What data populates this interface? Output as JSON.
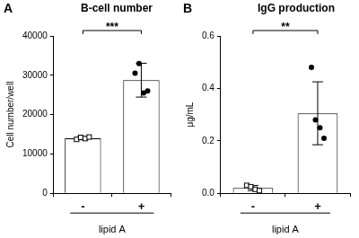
{
  "chart_data": [
    {
      "type": "bar",
      "panel": "A",
      "title": "B-cell number",
      "y_label": "Cell number/well",
      "x_label": "lipid A",
      "categories": [
        "-",
        "+"
      ],
      "values": [
        14000,
        28750
      ],
      "errors": [
        400,
        4300
      ],
      "points": [
        {
          "marker": "square-open",
          "values": [
            13700,
            14200,
            13900,
            14300
          ]
        },
        {
          "marker": "circle",
          "values": [
            30500,
            33000,
            25500,
            26000
          ]
        }
      ],
      "color": "#ffffff",
      "significance": "***",
      "ylim": [
        0,
        40000
      ],
      "yticks": [
        0,
        10000,
        20000,
        30000,
        40000
      ],
      "grid": false
    },
    {
      "type": "bar",
      "panel": "B",
      "title": "IgG production",
      "y_label": "μg/mL",
      "x_label": "lipid A",
      "categories": [
        "-",
        "+"
      ],
      "values": [
        0.02,
        0.305
      ],
      "errors": [
        0.01,
        0.12
      ],
      "points": [
        {
          "marker": "square-open",
          "values": [
            0.03,
            0.025,
            0.015,
            0.01
          ]
        },
        {
          "marker": "circle",
          "values": [
            0.48,
            0.28,
            0.25,
            0.21
          ]
        }
      ],
      "color": "#ffffff",
      "significance": "**",
      "ylim": [
        0,
        0.6
      ],
      "yticks": [
        {
          "value": 0,
          "label": "0.0"
        },
        {
          "value": 0.2,
          "label": "0.2"
        },
        {
          "value": 0.4,
          "label": "0.4"
        },
        {
          "value": 0.6,
          "label": "0.6"
        }
      ],
      "grid": false
    }
  ]
}
